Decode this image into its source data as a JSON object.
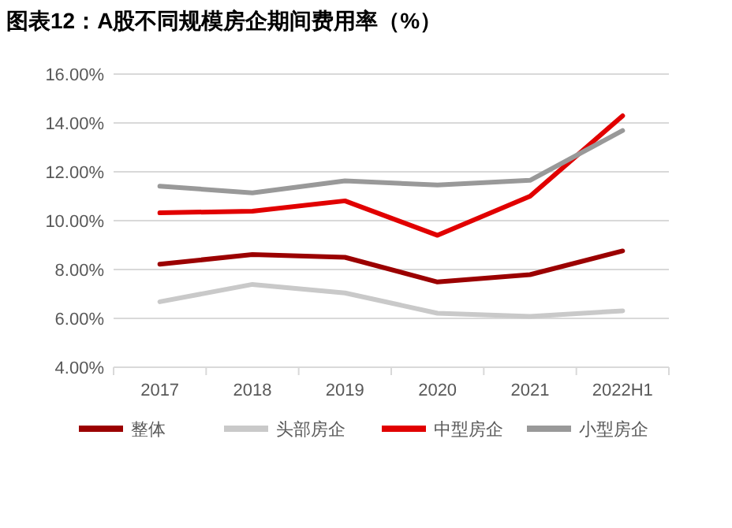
{
  "chart_data": {
    "type": "line",
    "title": "图表12：A股不同规模房企期间费用率（%）",
    "categories": [
      "2017",
      "2018",
      "2019",
      "2020",
      "2021",
      "2022H1"
    ],
    "series": [
      {
        "name": "整体",
        "color": "#9b0000",
        "values": [
          8.22,
          8.61,
          8.5,
          7.49,
          7.79,
          8.76
        ]
      },
      {
        "name": "头部房企",
        "color": "#c9c9c9",
        "values": [
          6.68,
          7.39,
          7.04,
          6.21,
          6.08,
          6.31
        ]
      },
      {
        "name": "中型房企",
        "color": "#e10000",
        "values": [
          10.32,
          10.39,
          10.81,
          9.4,
          11.0,
          14.29
        ]
      },
      {
        "name": "小型房企",
        "color": "#999999",
        "values": [
          11.41,
          11.14,
          11.63,
          11.46,
          11.65,
          13.69
        ]
      }
    ],
    "ylim": [
      4,
      16
    ],
    "yticks": [
      {
        "value": 4,
        "label": "4.00%"
      },
      {
        "value": 6,
        "label": "6.00%"
      },
      {
        "value": 8,
        "label": "8.00%"
      },
      {
        "value": 10,
        "label": "10.00%"
      },
      {
        "value": 12,
        "label": "12.00%"
      },
      {
        "value": 14,
        "label": "14.00%"
      },
      {
        "value": 16,
        "label": "16.00%"
      }
    ],
    "grid": "y",
    "legend": "bottom",
    "marker": "none",
    "line_style": "solid"
  }
}
